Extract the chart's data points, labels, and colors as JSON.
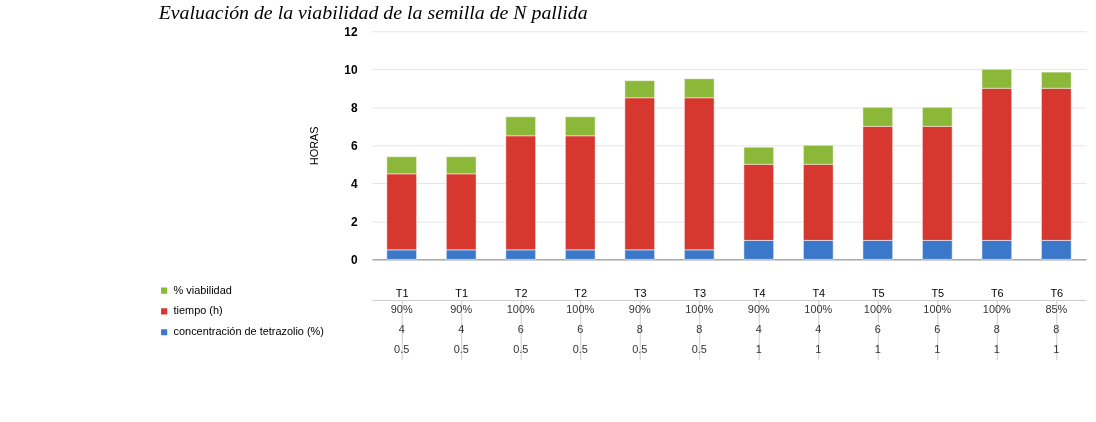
{
  "chart_data": {
    "type": "bar",
    "title": "Evaluación de la viabilidad de la semilla de N pallida",
    "ylabel": "HORAS",
    "stacked": true,
    "categories": [
      "T1",
      "T1",
      "T2",
      "T2",
      "T3",
      "T3",
      "T4",
      "T4",
      "T5",
      "T5",
      "T6",
      "T6"
    ],
    "series": [
      {
        "name": "concentración de tetrazolio (%)",
        "color": "#3b78c9",
        "values": [
          0.5,
          0.5,
          0.5,
          0.5,
          0.5,
          0.5,
          1,
          1,
          1,
          1,
          1,
          1
        ],
        "value_labels": [
          "0.5",
          "0.5",
          "0.5",
          "0.5",
          "0.5",
          "0.5",
          "1",
          "1",
          "1",
          "1",
          "1",
          "1"
        ]
      },
      {
        "name": "tiempo (h)",
        "color": "#d6372e",
        "values": [
          4,
          4,
          6,
          6,
          8,
          8,
          4,
          4,
          6,
          6,
          8,
          8
        ],
        "value_labels": [
          "4",
          "4",
          "6",
          "6",
          "8",
          "8",
          "4",
          "4",
          "6",
          "6",
          "8",
          "8"
        ]
      },
      {
        "name": "% viabilidad",
        "color": "#8cb83a",
        "values": [
          0.9,
          0.9,
          1,
          1,
          0.9,
          1,
          0.9,
          1,
          1,
          1,
          1,
          0.85
        ],
        "value_labels": [
          "90%",
          "90%",
          "100%",
          "100%",
          "90%",
          "100%",
          "90%",
          "100%",
          "100%",
          "100%",
          "100%",
          "85%"
        ]
      }
    ],
    "ylim": [
      0,
      12
    ],
    "yticks": [
      0,
      2,
      4,
      6,
      8,
      10,
      12
    ],
    "grid": "y",
    "legend": "bottom left"
  }
}
